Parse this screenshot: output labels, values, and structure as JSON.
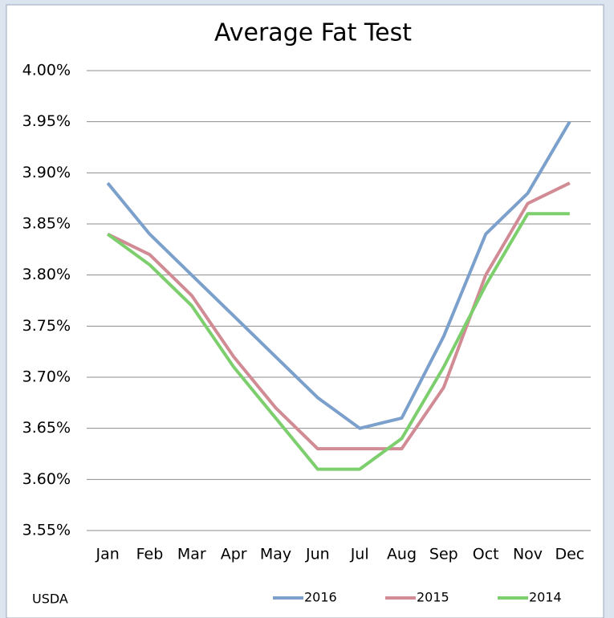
{
  "chart_data": {
    "type": "line",
    "title": "Average Fat Test",
    "annotation": "USDA",
    "categories": [
      "Jan",
      "Feb",
      "Mar",
      "Apr",
      "May",
      "Jun",
      "Jul",
      "Aug",
      "Sep",
      "Oct",
      "Nov",
      "Dec"
    ],
    "series": [
      {
        "name": "2016",
        "color": "#7ba0cc",
        "values": [
          3.89,
          3.84,
          3.8,
          3.76,
          3.72,
          3.68,
          3.65,
          3.66,
          3.74,
          3.84,
          3.88,
          3.95
        ]
      },
      {
        "name": "2015",
        "color": "#d18b95",
        "values": [
          3.84,
          3.82,
          3.78,
          3.72,
          3.67,
          3.63,
          3.63,
          3.63,
          3.69,
          3.8,
          3.87,
          3.89
        ]
      },
      {
        "name": "2014",
        "color": "#7dce6d",
        "values": [
          3.84,
          3.81,
          3.77,
          3.71,
          3.66,
          3.61,
          3.61,
          3.64,
          3.71,
          3.79,
          3.86,
          3.86
        ]
      }
    ],
    "ylim": [
      3.55,
      4.0
    ],
    "yticks": [
      {
        "value": 3.55,
        "label": "3.55%"
      },
      {
        "value": 3.6,
        "label": "3.60%"
      },
      {
        "value": 3.65,
        "label": "3.65%"
      },
      {
        "value": 3.7,
        "label": "3.70%"
      },
      {
        "value": 3.75,
        "label": "3.75%"
      },
      {
        "value": 3.8,
        "label": "3.80%"
      },
      {
        "value": 3.85,
        "label": "3.85%"
      },
      {
        "value": 3.9,
        "label": "3.90%"
      },
      {
        "value": 3.95,
        "label": "3.95%"
      },
      {
        "value": 4.0,
        "label": "4.00%"
      }
    ],
    "grid": true,
    "legend": "bottom"
  }
}
